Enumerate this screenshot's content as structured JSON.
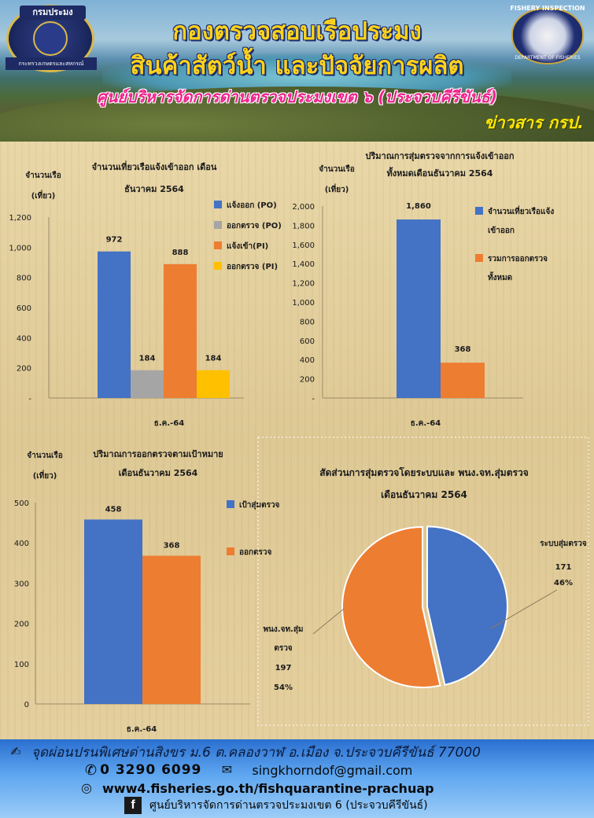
{
  "header": {
    "logo_left_top": "กรมประมง",
    "logo_left_bottom": "กระทรวงเกษตรและสหกรณ์",
    "logo_right_top": "FISHERY INSPECTION",
    "logo_right_bottom": "DEPARTMENT OF FISHERIES",
    "title_line1": "กองตรวจสอบเรือประมง",
    "title_line2": "สินค้าสัตว์น้ำ และปัจจัยการผลิต",
    "subtitle": "ศูนย์บริหารจัดการด่านตรวจประมงเขต ๖ (ประจวบคีรีขันธ์)",
    "tagline": "ข่าวสาร กรป."
  },
  "chart_data": [
    {
      "id": "chart1",
      "type": "bar",
      "title": "จำนวนเที่ยวเรือแจ้งเข้าออก เดือน ธันวาคม 2564",
      "title_lines": [
        "จำนวนเที่ยวเรือแจ้งเข้าออก เดือน",
        "ธันวาคม 2564"
      ],
      "ylabel_lines": [
        "จำนวนเรือ",
        "(เที่ยว)"
      ],
      "categories": [
        "ธ.ค.-64"
      ],
      "series": [
        {
          "name": "แจ้งออก (PO)",
          "values": [
            972
          ],
          "color": "#4472c4"
        },
        {
          "name": "ออกตรวจ (PO)",
          "values": [
            184
          ],
          "color": "#a5a5a5"
        },
        {
          "name": "แจ้งเข้า(PI)",
          "values": [
            888
          ],
          "color": "#ed7d31"
        },
        {
          "name": "ออกตรวจ (PI)",
          "values": [
            184
          ],
          "color": "#ffc000"
        }
      ],
      "yticks": [
        "-",
        "200",
        "400",
        "600",
        "800",
        "1,000",
        "1,200"
      ],
      "ylim": [
        0,
        1200
      ],
      "legend": "right"
    },
    {
      "id": "chart2",
      "type": "bar",
      "title": "ปริมาณการสุ่มตรวจจากการแจ้งเข้าออก ทั้งหมดเดือนธันวาคม 2564",
      "title_lines": [
        "ปริมาณการสุ่มตรวจจากการแจ้งเข้าออก",
        "ทั้งหมดเดือนธันวาคม 2564"
      ],
      "ylabel_lines": [
        "จำนวนเรือ",
        "(เที่ยว)"
      ],
      "categories": [
        "ธ.ค.-64"
      ],
      "series": [
        {
          "name": "จำนวนเที่ยวเรือแจ้งเข้าออก",
          "name_lines": [
            "จำนวนเที่ยวเรือแจ้ง",
            "เข้าออก"
          ],
          "values": [
            1860
          ],
          "color": "#4472c4"
        },
        {
          "name": "รวมการออกตรวจทั้งหมด",
          "name_lines": [
            "รวมการออกตรวจ",
            "ทั้งหมด"
          ],
          "values": [
            368
          ],
          "color": "#ed7d31"
        }
      ],
      "data_labels": [
        "1,860",
        "368"
      ],
      "yticks": [
        "-",
        "200",
        "400",
        "600",
        "800",
        "1,000",
        "1,200",
        "1,400",
        "1,600",
        "1,800",
        "2,000"
      ],
      "ylim": [
        0,
        2000
      ],
      "legend": "right"
    },
    {
      "id": "chart3",
      "type": "bar",
      "title": "ปริมาณการออกตรวจตามเป้าหมาย เดือนธันวาคม 2564",
      "title_lines": [
        "ปริมาณการออกตรวจตามเป้าหมาย",
        "เดือนธันวาคม 2564"
      ],
      "ylabel_lines": [
        "จำนวนเรือ",
        "(เที่ยว)"
      ],
      "categories": [
        "ธ.ค.-64"
      ],
      "series": [
        {
          "name": "เป้าสุ่มตรวจ",
          "values": [
            458
          ],
          "color": "#4472c4"
        },
        {
          "name": "ออกตรวจ",
          "values": [
            368
          ],
          "color": "#ed7d31"
        }
      ],
      "yticks": [
        "0",
        "100",
        "200",
        "300",
        "400",
        "500"
      ],
      "ylim": [
        0,
        500
      ],
      "legend": "right"
    },
    {
      "id": "chart4",
      "type": "pie",
      "title": "สัดส่วนการสุ่มตรวจโดยระบบและ พนง.จท.สุ่มตรวจ เดือนธันวาคม 2564",
      "title_lines": [
        "สัดส่วนการสุ่มตรวจโดยระบบและ พนง.จท.สุ่มตรวจ",
        "เดือนธันวาคม 2564"
      ],
      "slices": [
        {
          "label": "ระบบสุ่มตรวจ",
          "value": 171,
          "percent": "46%",
          "color": "#4472c4"
        },
        {
          "label": "พนง.จท.สุ่มตรวจ",
          "label_lines": [
            "พนง.จท.สุ่ม",
            "ตรวจ"
          ],
          "value": 197,
          "percent": "54%",
          "color": "#ed7d31"
        }
      ]
    }
  ],
  "footer": {
    "address": "จุดผ่อนปรนพิเศษด่านสิงขร ม.6 ต.คลองวาฬ อ.เมือง จ.ประจวบคีรีขันธ์ 77000",
    "phone": "0 3290 6099",
    "email": "singkhorndof@gmail.com",
    "website": "www4.fisheries.go.th/fishquarantine-prachuap",
    "facebook": "ศูนย์บริหารจัดการด่านตรวจประมงเขต 6 (ประจวบคีรีขันธ์)"
  }
}
